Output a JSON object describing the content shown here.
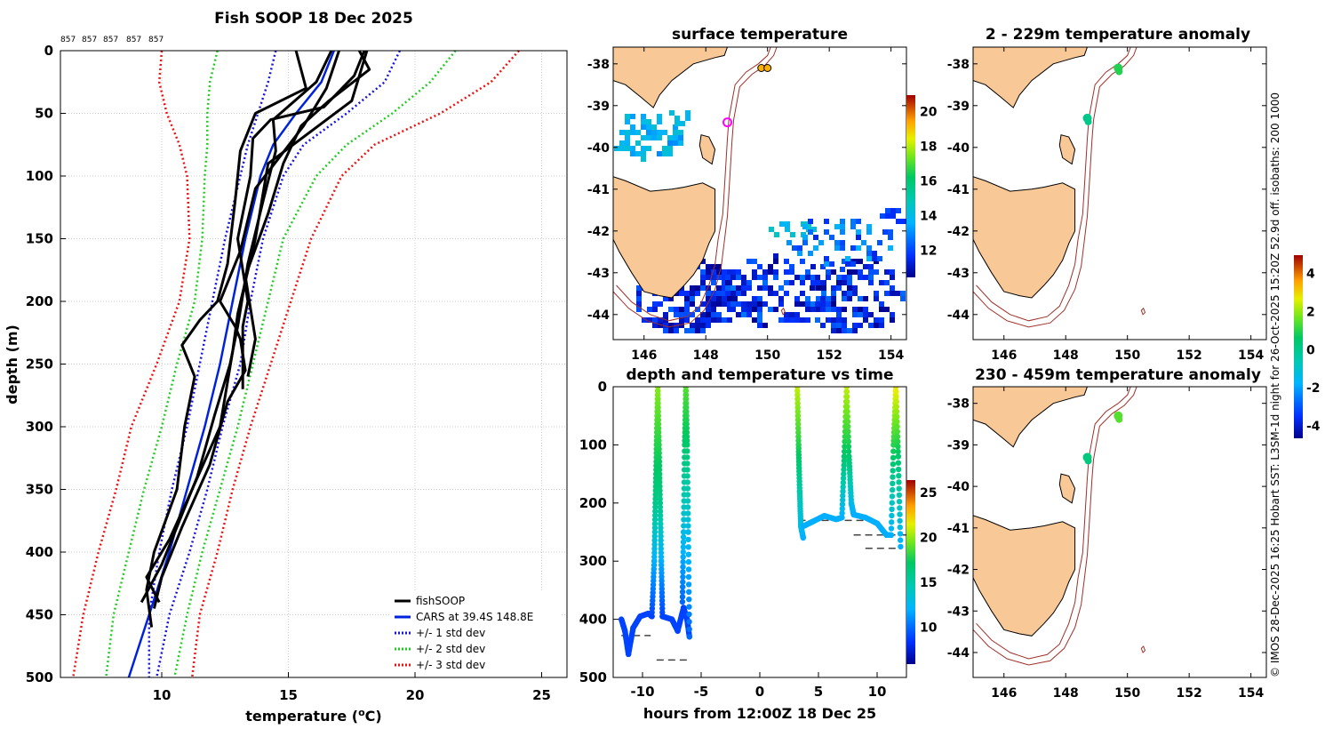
{
  "colors": {
    "land": "#f8c896",
    "isobath": "#a0302a",
    "cars": "#0022dd",
    "std1": "#1515e0",
    "std2": "#22cc22",
    "std3": "#ee1111",
    "fishsoop": "#000000",
    "grid": "#cccccc"
  },
  "credit": "© IMOS 28-Dec-2025 16:25 Hobart SST: L3SM-1d night for 26-Oct-2025 15:20Z 52.9d off. isobaths: 200  1000",
  "chart_data": [
    {
      "id": "profile",
      "type": "line",
      "title": "Fish SOOP 18 Dec 2025",
      "xlabel": "temperature (°C)",
      "ylabel": "depth (m)",
      "xlim": [
        6,
        26
      ],
      "ylim": [
        500,
        0
      ],
      "xticks": [
        10,
        15,
        20,
        25
      ],
      "yticks": [
        0,
        50,
        100,
        150,
        200,
        250,
        300,
        350,
        400,
        450,
        500
      ],
      "grid": true,
      "top_labels": [
        "857",
        "857",
        "857",
        "857",
        "857"
      ],
      "legend": {
        "position": "bottom-right",
        "entries": [
          "fishSOOP",
          "CARS at 39.4S 148.8E",
          "+/- 1 std dev",
          "+/- 2 std dev",
          "+/- 3 std dev"
        ]
      },
      "series": [
        {
          "name": "CARS at 39.4S 148.8E",
          "style": "solid",
          "depth": [
            0,
            25,
            50,
            75,
            100,
            150,
            200,
            250,
            300,
            350,
            400,
            450,
            500
          ],
          "temp": [
            16.8,
            16.3,
            15.3,
            14.4,
            13.9,
            13.3,
            12.8,
            12.3,
            11.7,
            11.0,
            10.3,
            9.5,
            8.7
          ]
        },
        {
          "name": "-1 std dev",
          "style": "dotted",
          "depth": [
            0,
            25,
            50,
            75,
            100,
            150,
            200,
            250,
            300,
            350,
            400,
            450,
            500
          ],
          "temp": [
            14.5,
            14.2,
            13.8,
            13.4,
            13.1,
            12.5,
            12.0,
            11.5,
            11.0,
            10.4,
            9.9,
            9.5,
            9.5
          ]
        },
        {
          "name": "+1 std dev",
          "style": "dotted",
          "depth": [
            0,
            25,
            50,
            75,
            100,
            150,
            200,
            250,
            300,
            350,
            400,
            450,
            500
          ],
          "temp": [
            19.4,
            18.8,
            17.3,
            15.6,
            14.8,
            14.0,
            13.5,
            13.1,
            12.4,
            11.8,
            11.1,
            10.3,
            9.8
          ]
        },
        {
          "name": "-2 std dev",
          "style": "dotted",
          "depth": [
            0,
            25,
            50,
            75,
            100,
            150,
            200,
            250,
            300,
            350,
            400,
            450,
            500
          ],
          "temp": [
            12.2,
            11.9,
            11.8,
            11.8,
            11.7,
            11.6,
            11.3,
            10.6,
            10.0,
            9.3,
            8.7,
            8.1,
            7.8
          ]
        },
        {
          "name": "+2 std dev",
          "style": "dotted",
          "depth": [
            0,
            25,
            50,
            75,
            100,
            150,
            200,
            250,
            300,
            350,
            400,
            450,
            500
          ],
          "temp": [
            21.6,
            20.6,
            19.1,
            17.3,
            16.1,
            14.8,
            14.2,
            13.6,
            13.0,
            12.3,
            11.6,
            11.0,
            10.5
          ]
        },
        {
          "name": "-3 std dev",
          "style": "dotted",
          "depth": [
            0,
            25,
            50,
            75,
            100,
            150,
            200,
            250,
            300,
            350,
            400,
            450,
            500
          ],
          "temp": [
            10.0,
            9.9,
            10.2,
            10.7,
            11.0,
            11.1,
            10.7,
            9.8,
            8.8,
            8.2,
            7.5,
            6.9,
            6.5
          ]
        },
        {
          "name": "+3 std dev",
          "style": "dotted",
          "depth": [
            0,
            25,
            50,
            75,
            100,
            150,
            200,
            250,
            300,
            350,
            400,
            450,
            500
          ],
          "temp": [
            24.1,
            23.0,
            21.0,
            18.4,
            17.1,
            15.9,
            15.1,
            14.3,
            13.5,
            12.8,
            12.2,
            11.5,
            11.2
          ]
        },
        {
          "name": "fishSOOP cast 1",
          "style": "thick",
          "depth": [
            0,
            20,
            45,
            55,
            70,
            100,
            150,
            200,
            220,
            250,
            270
          ],
          "temp": [
            18.0,
            17.6,
            16.4,
            14.3,
            13.6,
            13.5,
            13.0,
            13.4,
            13.2,
            13.2,
            13.2
          ]
        },
        {
          "name": "fishSOOP cast 2",
          "style": "thick",
          "depth": [
            0,
            15,
            40,
            60,
            90,
            130,
            180,
            230,
            260
          ],
          "temp": [
            17.8,
            18.2,
            16.6,
            15.5,
            14.8,
            14.2,
            13.3,
            13.7,
            13.4
          ]
        },
        {
          "name": "fishSOOP cast 3",
          "style": "thick",
          "depth": [
            0,
            30,
            50,
            80,
            120,
            170,
            200,
            215,
            235,
            260,
            300,
            350,
            400,
            430,
            460
          ],
          "temp": [
            15.3,
            15.7,
            13.7,
            13.1,
            12.9,
            12.6,
            12.2,
            11.5,
            10.8,
            11.3,
            10.9,
            10.6,
            9.7,
            9.4,
            9.6
          ]
        },
        {
          "name": "fishSOOP cast 4",
          "style": "thick",
          "depth": [
            0,
            25,
            55,
            80,
            120,
            170,
            220,
            250,
            290,
            340,
            380,
            410,
            440
          ],
          "temp": [
            16.7,
            16.1,
            14.4,
            14.5,
            14.0,
            13.4,
            13.0,
            12.7,
            12.1,
            11.4,
            10.6,
            10.0,
            9.2
          ]
        },
        {
          "name": "fishSOOP cast 5",
          "style": "thick",
          "depth": [
            0,
            40,
            90,
            150,
            210,
            240,
            300,
            350,
            390,
            420,
            440
          ],
          "temp": [
            18.1,
            17.5,
            14.2,
            13.7,
            13.0,
            12.8,
            12.3,
            11.2,
            10.3,
            9.4,
            9.9
          ]
        },
        {
          "name": "fishSOOP cast 6",
          "style": "thick",
          "depth": [
            0,
            30,
            60,
            110,
            160,
            200,
            220,
            230,
            255,
            280,
            330,
            380,
            420,
            445
          ],
          "temp": [
            17.0,
            16.5,
            15.6,
            13.7,
            13.1,
            12.3,
            12.9,
            13.1,
            13.3,
            12.6,
            11.9,
            10.8,
            10.0,
            9.7
          ]
        }
      ]
    },
    {
      "id": "sst_map",
      "type": "heatmap",
      "title": "surface temperature",
      "xlim": [
        145,
        154.5
      ],
      "ylim": [
        -44.6,
        -37.6
      ],
      "xticks": [
        146,
        148,
        150,
        152,
        154
      ],
      "yticks": [
        -38,
        -39,
        -40,
        -41,
        -42,
        -43,
        -44
      ],
      "colorbar_ticks": [
        12,
        14,
        16,
        18,
        20
      ],
      "colorbar_range": [
        10.5,
        21
      ],
      "markers": [
        {
          "lon": 149.8,
          "lat": -38.1,
          "label": "orange dot"
        },
        {
          "lon": 150.0,
          "lat": -38.1,
          "label": "orange dot"
        },
        {
          "lon": 148.7,
          "lat": -39.4,
          "label": "magenta ring"
        }
      ]
    },
    {
      "id": "depth_time",
      "type": "scatter",
      "title": "depth and temperature vs time",
      "xlabel": "hours from 12:00Z 18 Dec 25",
      "xlim": [
        -12.5,
        12.5
      ],
      "ylim": [
        500,
        0
      ],
      "xticks": [
        -10,
        -5,
        0,
        5,
        10
      ],
      "yticks": [
        0,
        100,
        200,
        300,
        400,
        500
      ],
      "colorbar_ticks": [
        10,
        15,
        20,
        25
      ],
      "colorbar_range": [
        6,
        26.5
      ],
      "segments": [
        {
          "t": [
            -11.8,
            -11.5,
            -11.2,
            -10.8,
            -10.2,
            -9.5,
            -9.2
          ],
          "depth": [
            400,
            420,
            460,
            415,
            395,
            390,
            395
          ],
          "temp": [
            9,
            9,
            9,
            9,
            9,
            9,
            9
          ]
        },
        {
          "t": [
            -9.2,
            -9.0,
            -8.9,
            -8.8,
            -8.7,
            -8.6,
            -8.5,
            -8.4,
            -8.3
          ],
          "depth": [
            395,
            300,
            200,
            100,
            0,
            100,
            200,
            300,
            395
          ],
          "temp": [
            9,
            12,
            16,
            18,
            20,
            18,
            16,
            12,
            9
          ]
        },
        {
          "t": [
            -8.3,
            -7.5,
            -7.0,
            -6.5,
            -6.2,
            -6.0
          ],
          "depth": [
            395,
            400,
            420,
            380,
            400,
            430
          ],
          "temp": [
            9,
            9,
            9,
            9,
            9,
            9
          ]
        },
        {
          "t": [
            -6.6,
            -6.5,
            -6.4,
            -6.3,
            -6.2,
            -6.1,
            -6.0
          ],
          "depth": [
            370,
            250,
            100,
            0,
            100,
            250,
            430
          ],
          "temp": [
            10,
            13,
            17,
            19,
            17,
            13,
            10
          ]
        },
        {
          "t": [
            3.2,
            3.3,
            3.4,
            3.5,
            3.7
          ],
          "depth": [
            0,
            100,
            180,
            240,
            260
          ],
          "temp": [
            21,
            18,
            15,
            13,
            12
          ]
        },
        {
          "t": [
            3.7,
            4.5,
            5.5,
            6.5,
            7.0
          ],
          "depth": [
            240,
            232,
            222,
            228,
            225
          ],
          "temp": [
            12,
            12,
            12,
            12,
            12
          ]
        },
        {
          "t": [
            7.0,
            7.2,
            7.4,
            7.6,
            7.8,
            8.0
          ],
          "depth": [
            225,
            120,
            0,
            120,
            200,
            220
          ],
          "temp": [
            12,
            17,
            21,
            17,
            13,
            12
          ]
        },
        {
          "t": [
            8.0,
            9.0,
            10.0,
            10.8,
            11.2
          ],
          "depth": [
            220,
            225,
            235,
            255,
            255
          ],
          "temp": [
            12,
            12,
            12,
            12,
            12
          ]
        },
        {
          "t": [
            11.2,
            11.4,
            11.6,
            11.8,
            12.0
          ],
          "depth": [
            255,
            100,
            0,
            120,
            275
          ],
          "temp": [
            12,
            18,
            22,
            17,
            12
          ]
        }
      ],
      "reference_lines": [
        {
          "t": [
            -11.8,
            -9.3
          ],
          "depth": 428
        },
        {
          "t": [
            -8.8,
            -6.0
          ],
          "depth": 470
        },
        {
          "t": [
            3.3,
            9.0
          ],
          "depth": 230
        },
        {
          "t": [
            8.0,
            12.5
          ],
          "depth": 255
        },
        {
          "t": [
            9.0,
            12.0
          ],
          "depth": 278
        }
      ]
    },
    {
      "id": "anom_upper",
      "type": "scatter",
      "title": "2 - 229m temperature anomaly",
      "xlim": [
        145,
        154.5
      ],
      "ylim": [
        -44.6,
        -37.6
      ],
      "xticks": [
        146,
        148,
        150,
        152,
        154
      ],
      "yticks": [
        -38,
        -39,
        -40,
        -41,
        -42,
        -43,
        -44
      ],
      "points": [
        {
          "lon": 149.7,
          "lat": -38.1,
          "anomaly": 1.0
        },
        {
          "lon": 148.7,
          "lat": -39.3,
          "anomaly": 0.1
        }
      ]
    },
    {
      "id": "anom_lower",
      "type": "scatter",
      "title": "230 - 459m temperature anomaly",
      "xlim": [
        145,
        154.5
      ],
      "ylim": [
        -44.6,
        -37.6
      ],
      "xticks": [
        146,
        148,
        150,
        152,
        154
      ],
      "yticks": [
        -38,
        -39,
        -40,
        -41,
        -42,
        -43,
        -44
      ],
      "points": [
        {
          "lon": 149.7,
          "lat": -38.3,
          "anomaly": 1.5
        },
        {
          "lon": 148.7,
          "lat": -39.3,
          "anomaly": 0.3
        }
      ],
      "colorbar_ticks": [
        -4,
        -2,
        0,
        2,
        4
      ],
      "colorbar_range": [
        -4.6,
        5
      ]
    }
  ]
}
